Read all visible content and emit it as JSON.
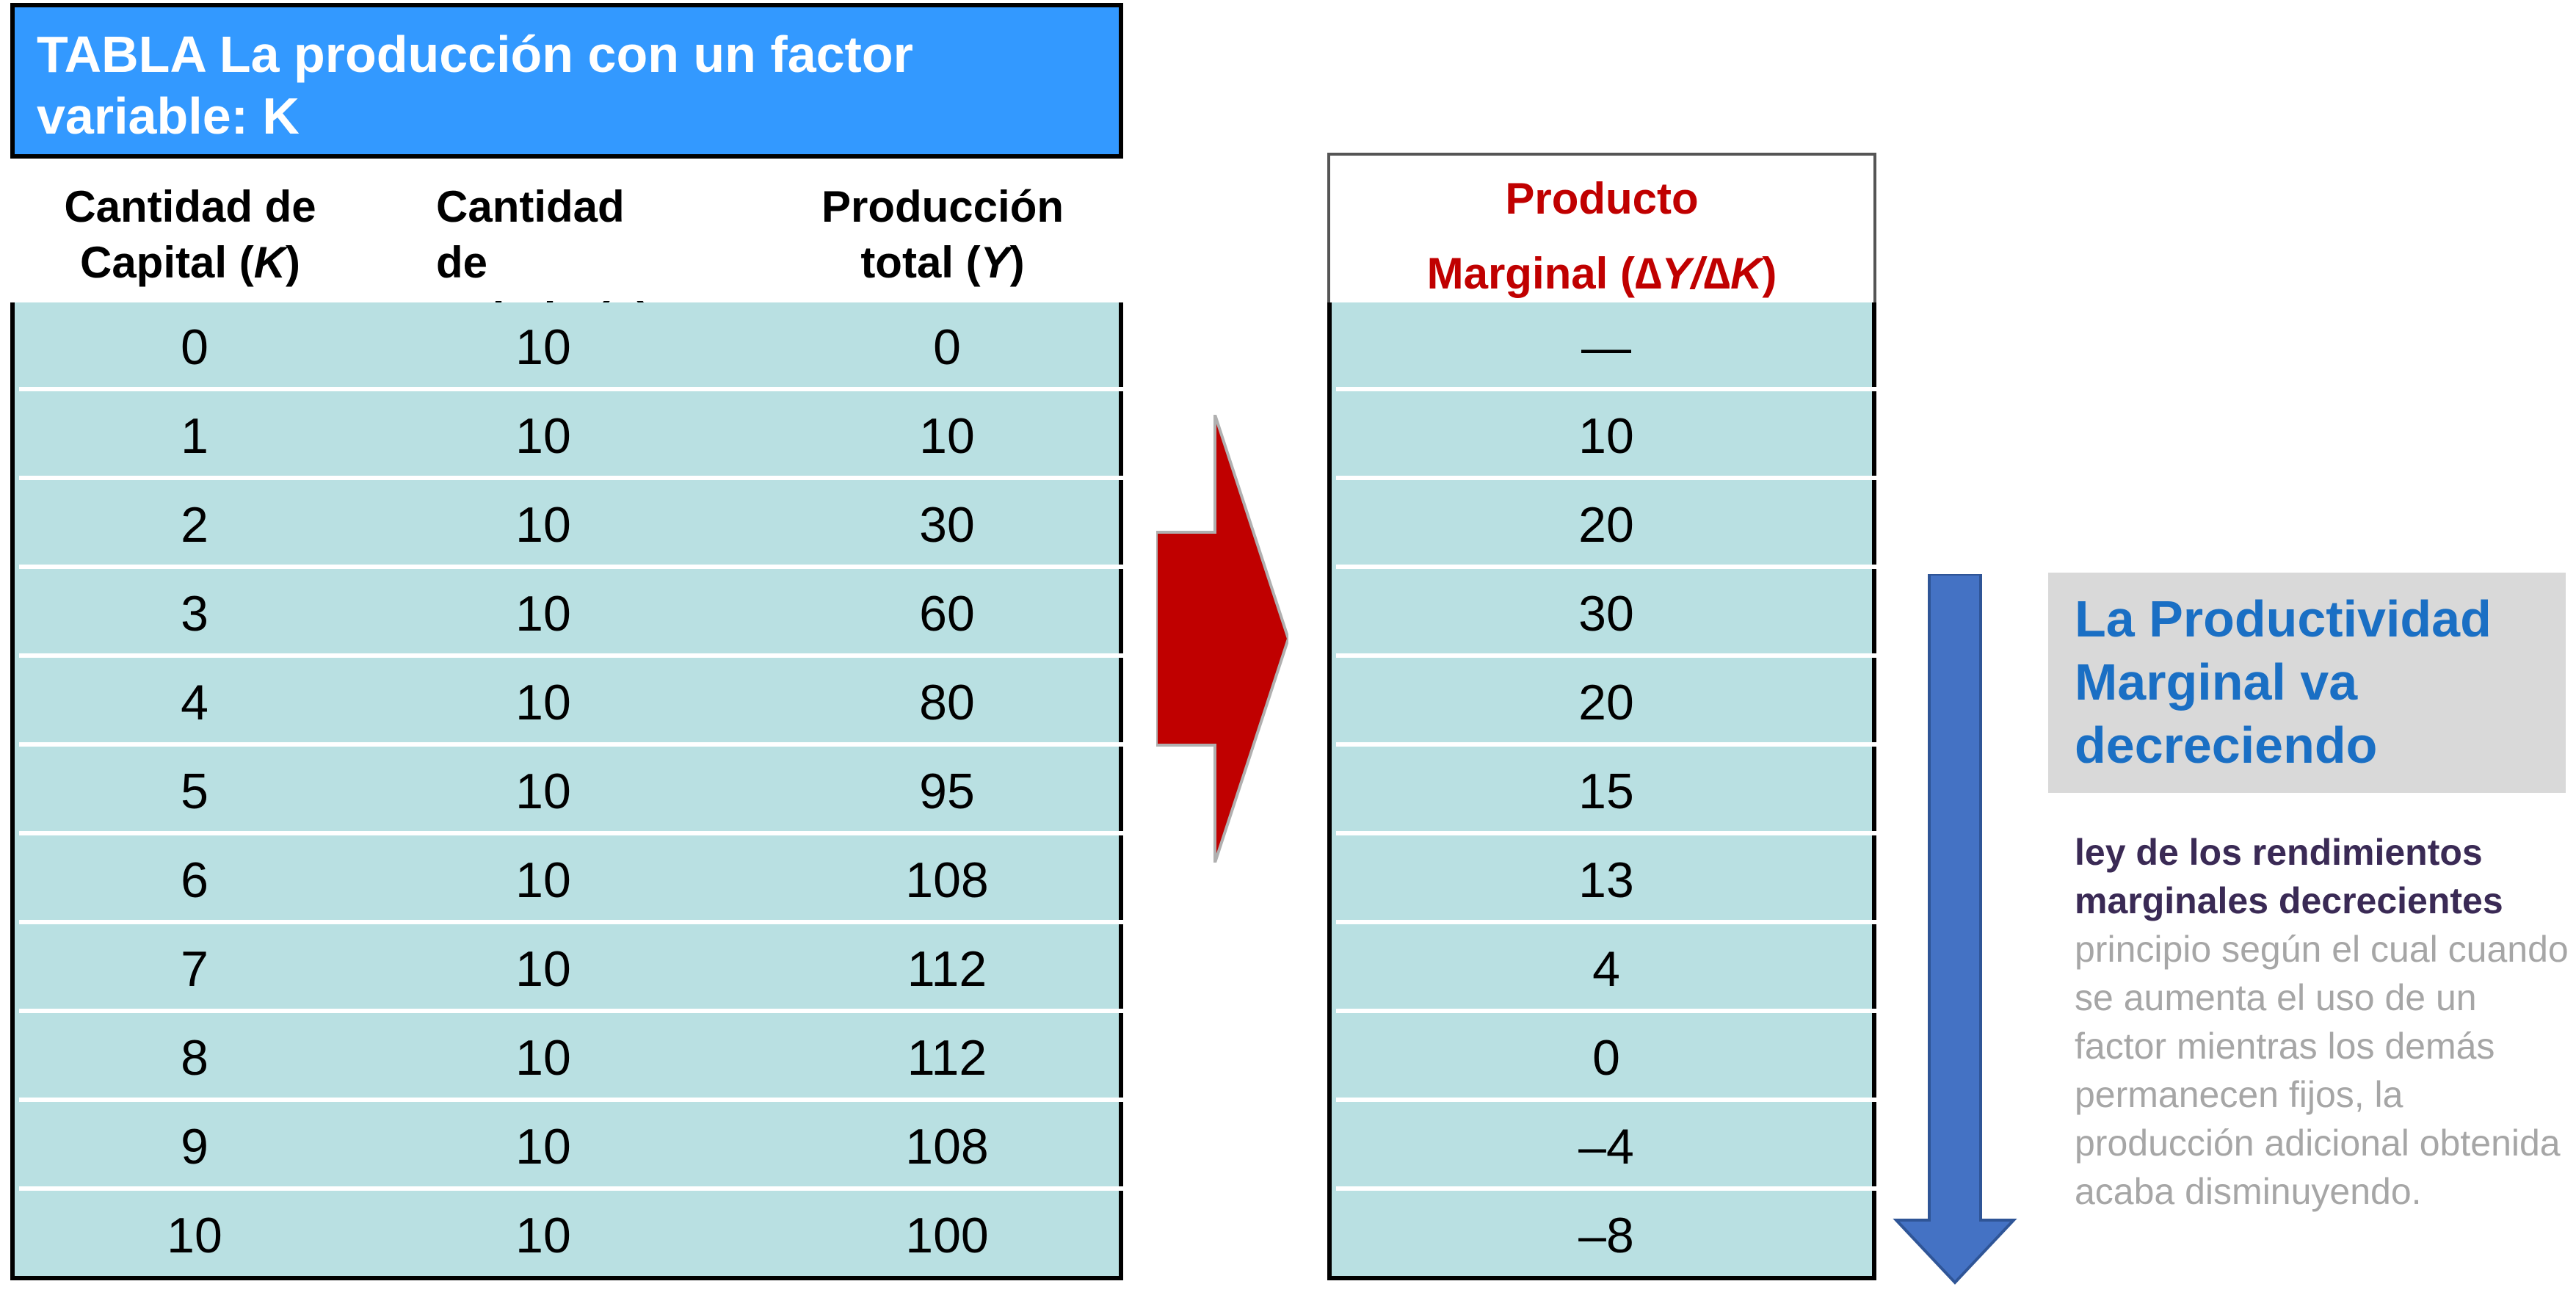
{
  "table": {
    "title": "TABLA La producción con un factor variable: K",
    "headers": {
      "capital": {
        "line1": "Cantidad de",
        "line2_pre": "Capital (",
        "var": "K",
        "line2_post": ")"
      },
      "labor": {
        "line1": "Cantidad de",
        "line2_pre": "trabajo (",
        "var": "L",
        "line2_post": ")"
      },
      "output": {
        "line1": "Producción",
        "line2_pre": "total (",
        "var": "Y",
        "line2_post": ")"
      }
    },
    "rows": [
      {
        "k": "0",
        "l": "10",
        "y": "0"
      },
      {
        "k": "1",
        "l": "10",
        "y": "10"
      },
      {
        "k": "2",
        "l": "10",
        "y": "30"
      },
      {
        "k": "3",
        "l": "10",
        "y": "60"
      },
      {
        "k": "4",
        "l": "10",
        "y": "80"
      },
      {
        "k": "5",
        "l": "10",
        "y": "95"
      },
      {
        "k": "6",
        "l": "10",
        "y": "108"
      },
      {
        "k": "7",
        "l": "10",
        "y": "112"
      },
      {
        "k": "8",
        "l": "10",
        "y": "112"
      },
      {
        "k": "9",
        "l": "10",
        "y": "108"
      },
      {
        "k": "10",
        "l": "10",
        "y": "100"
      }
    ]
  },
  "marginal": {
    "header_line1": "Producto",
    "header_line2_pre": "Marginal (",
    "header_formula": "∆Y/∆K",
    "header_line2_post": ")",
    "values": [
      "—",
      "10",
      "20",
      "30",
      "20",
      "15",
      "13",
      "4",
      "0",
      "–4",
      "–8"
    ]
  },
  "callout": {
    "title": "La Productividad Marginal va decreciendo"
  },
  "law": {
    "term": "ley de los rendimientos marginales decrecientes",
    "definition": "principio según el cual cuando se aumenta el uso de un factor mientras los demás permanecen fijos, la producción adicional obtenida acaba disminuyendo."
  },
  "colors": {
    "title_bar": "#3399ff",
    "table_fill": "#b9e0e2",
    "arrow_red": "#c00000",
    "arrow_blue": "#4472c4",
    "marginal_header": "#c00000",
    "callout_text": "#1a6fc4",
    "callout_bg": "#d9d9d9"
  },
  "icons": [
    "right-arrow-icon",
    "down-arrow-icon"
  ]
}
